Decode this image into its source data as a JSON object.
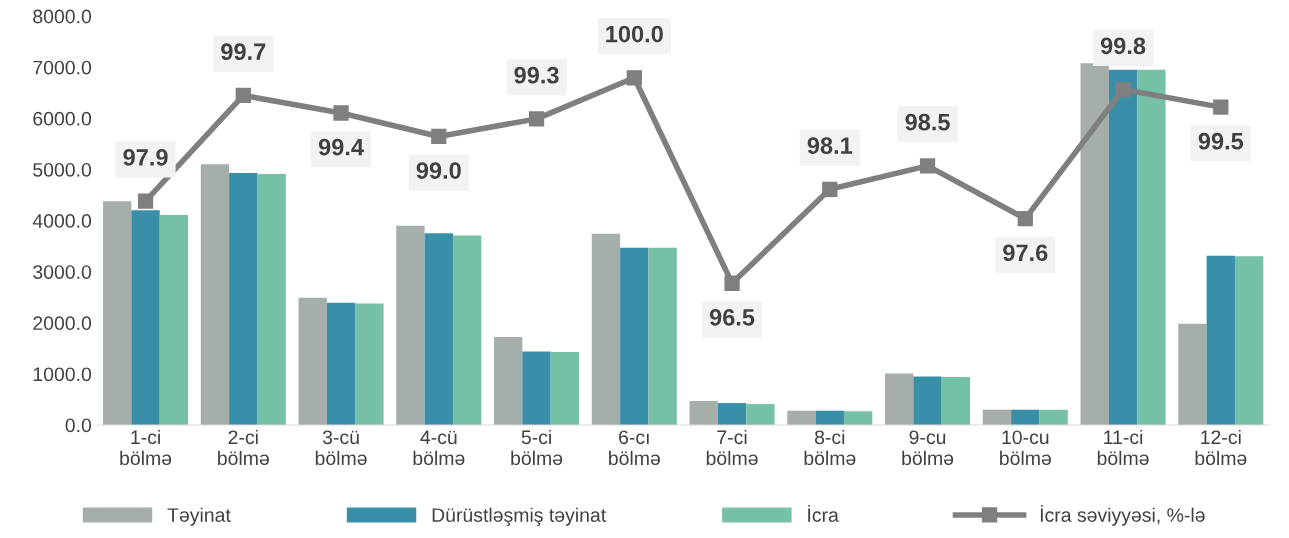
{
  "chart_data": {
    "type": "bar",
    "categories": [
      "1-ci\nbölmə",
      "2-ci\nbölmə",
      "3-cü\nbölmə",
      "4-cü\nbölmə",
      "5-ci\nbölmə",
      "6-cı\nbölmə",
      "7-ci\nbölmə",
      "8-ci\nbölmə",
      "9-cu\nbölmə",
      "10-cu\nbölmə",
      "11-ci\nbölmə",
      "12-ci\nbölmə"
    ],
    "series": [
      {
        "name": "Təyinat",
        "color": "#a5aea9",
        "values": [
          4380,
          5100,
          2490,
          3900,
          1720,
          3740,
          470,
          280,
          1010,
          300,
          7080,
          1980
        ]
      },
      {
        "name": "Dürüstləşmiş təyinat",
        "color": "#3a8fa8",
        "values": [
          4200,
          4930,
          2390,
          3750,
          1440,
          3470,
          430,
          280,
          950,
          300,
          6950,
          3310
        ]
      },
      {
        "name": "İcra",
        "color": "#76c0a6",
        "values": [
          4110,
          4910,
          2380,
          3710,
          1430,
          3470,
          410,
          270,
          940,
          300,
          6950,
          3300
        ]
      },
      {
        "name": "İcra səviyyəsi, %-lə",
        "type": "line",
        "axis": "y2",
        "color": "#7f7f7f",
        "marker": "square",
        "data_labels": true,
        "value_labels": [
          "97.9",
          "99.7",
          "99.4",
          "99.0",
          "99.3",
          "100.0",
          "96.5",
          "98.1",
          "98.5",
          "97.6",
          "99.8",
          "99.5"
        ],
        "values": [
          97.9,
          99.7,
          99.4,
          99.0,
          99.3,
          100.0,
          96.5,
          98.1,
          98.5,
          97.6,
          99.8,
          99.5
        ]
      }
    ],
    "ylim": [
      0,
      8000
    ],
    "yticks": [
      {
        "value": 0,
        "label": "0.0"
      },
      {
        "value": 1000,
        "label": "1000.0"
      },
      {
        "value": 2000,
        "label": "2000.0"
      },
      {
        "value": 3000,
        "label": "3000.0"
      },
      {
        "value": 4000,
        "label": "4000.0"
      },
      {
        "value": 5000,
        "label": "5000.0"
      },
      {
        "value": 6000,
        "label": "6000.0"
      },
      {
        "value": 7000,
        "label": "7000.0"
      },
      {
        "value": 8000,
        "label": "8000.0"
      }
    ],
    "tick_labels": "xy",
    "grid": false,
    "legend": "bottom"
  }
}
